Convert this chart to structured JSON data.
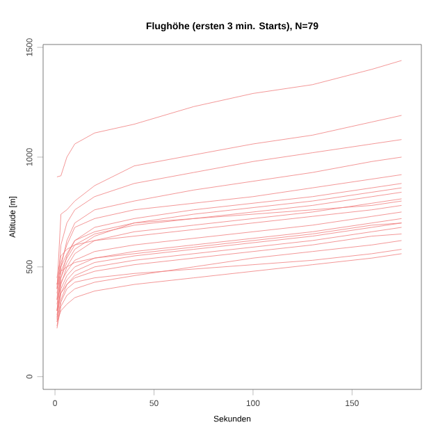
{
  "chart_data": {
    "type": "line",
    "title": "Flughöhe (ersten 3 min. Starts), N=79",
    "xlabel": "Sekunden",
    "ylabel": "Altitude [m]",
    "x": [
      1,
      3,
      6,
      10,
      20,
      40,
      70,
      100,
      130,
      160,
      175
    ],
    "xlim": [
      -6,
      185
    ],
    "ylim": [
      -58,
      1513
    ],
    "xticks": [
      0,
      50,
      100,
      150
    ],
    "yticks": [
      0,
      500,
      1000,
      1500
    ],
    "grid": false,
    "marker": "none",
    "line_style": "solid",
    "series": [
      {
        "color": "#f07c7c",
        "values": [
          910,
          915,
          1000,
          1060,
          1110,
          1150,
          1230,
          1290,
          1330,
          1400,
          1440
        ]
      },
      {
        "color": "#f07c7c",
        "values": [
          400,
          740,
          760,
          800,
          870,
          960,
          1010,
          1060,
          1100,
          1160,
          1190
        ]
      },
      {
        "color": "#f07c7c",
        "values": [
          350,
          600,
          700,
          760,
          820,
          880,
          930,
          980,
          1020,
          1060,
          1080
        ]
      },
      {
        "color": "#f07c7c",
        "values": [
          300,
          500,
          620,
          700,
          760,
          800,
          850,
          890,
          930,
          980,
          1000
        ]
      },
      {
        "color": "#f07c7c",
        "values": [
          420,
          520,
          600,
          680,
          720,
          760,
          790,
          820,
          860,
          900,
          920
        ]
      },
      {
        "color": "#f07c7c",
        "values": [
          300,
          450,
          550,
          620,
          680,
          720,
          760,
          790,
          820,
          860,
          880
        ]
      },
      {
        "color": "#f07c7c",
        "values": [
          380,
          480,
          540,
          600,
          650,
          690,
          720,
          750,
          780,
          820,
          840
        ]
      },
      {
        "color": "#f07c7c",
        "values": [
          260,
          420,
          500,
          560,
          620,
          660,
          690,
          720,
          750,
          790,
          810
        ]
      },
      {
        "color": "#f07c7c",
        "values": [
          450,
          550,
          580,
          600,
          620,
          640,
          670,
          700,
          730,
          760,
          780
        ]
      },
      {
        "color": "#f07c7c",
        "values": [
          330,
          430,
          480,
          530,
          570,
          600,
          630,
          660,
          690,
          730,
          750
        ]
      },
      {
        "color": "#f07c7c",
        "values": [
          280,
          400,
          460,
          500,
          540,
          570,
          600,
          630,
          660,
          700,
          720
        ]
      },
      {
        "color": "#f07c7c",
        "values": [
          400,
          480,
          500,
          520,
          540,
          560,
          590,
          620,
          650,
          690,
          700
        ]
      },
      {
        "color": "#f07c7c",
        "values": [
          250,
          350,
          420,
          460,
          500,
          530,
          560,
          590,
          620,
          660,
          680
        ]
      },
      {
        "color": "#f07c7c",
        "values": [
          300,
          380,
          420,
          450,
          480,
          510,
          540,
          570,
          600,
          640,
          650
        ]
      },
      {
        "color": "#f07c7c",
        "values": [
          220,
          320,
          370,
          400,
          430,
          460,
          500,
          540,
          570,
          600,
          620
        ]
      },
      {
        "color": "#f07c7c",
        "values": [
          250,
          300,
          330,
          360,
          390,
          420,
          450,
          480,
          510,
          540,
          560
        ]
      },
      {
        "color": "#f07c7c",
        "values": [
          350,
          450,
          520,
          580,
          640,
          700,
          720,
          740,
          760,
          780,
          800
        ]
      },
      {
        "color": "#f07c7c",
        "values": [
          270,
          380,
          440,
          480,
          520,
          550,
          580,
          610,
          640,
          680,
          700
        ]
      },
      {
        "color": "#f07c7c",
        "values": [
          420,
          500,
          560,
          620,
          660,
          700,
          740,
          770,
          800,
          840,
          860
        ]
      },
      {
        "color": "#f07c7c",
        "values": [
          230,
          340,
          400,
          430,
          450,
          470,
          490,
          510,
          530,
          560,
          580
        ]
      }
    ]
  }
}
